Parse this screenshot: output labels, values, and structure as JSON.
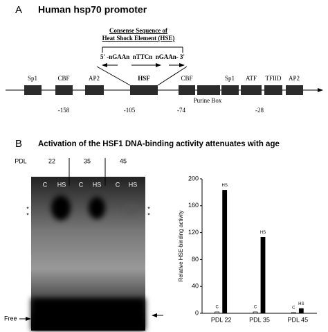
{
  "panel_a": {
    "letter": "A",
    "title": "Human hsp70 promoter",
    "consensus_title": [
      "Consense Sequence of",
      "Heat Shock Element (HSE)"
    ],
    "sequence": "5' -nGAAn  nTTCn  nGAAn- 3'",
    "elements": [
      "Sp1",
      "CBF",
      "AP2",
      "HSF",
      "CBF",
      "Sp1",
      "ATF",
      "TFIID",
      "AP2"
    ],
    "purine_box": "Purine Box",
    "positions": [
      "-158",
      "-105",
      "-74",
      "-28"
    ]
  },
  "panel_b": {
    "letter": "B",
    "title": "Activation of the HSF1 DNA-binding activity attenuates with age"
  },
  "gel": {
    "pdl_label": "PDL",
    "pdl": [
      "22",
      "35",
      "45"
    ],
    "lanes": [
      "C",
      "HS",
      "C",
      "HS",
      "C",
      "HS"
    ],
    "stars": [
      "*",
      "*",
      "*",
      "*"
    ],
    "free": "Free"
  },
  "chart_data": {
    "type": "bar",
    "y_label": "Relative HSE-binding activity",
    "categories": [
      "PDL 22",
      "PDL 35",
      "PDL 45"
    ],
    "series": [
      {
        "name": "C",
        "color": "#ffffff",
        "values": [
          2,
          2,
          1
        ]
      },
      {
        "name": "HS",
        "color": "#000000",
        "values": [
          183,
          113,
          7
        ]
      }
    ],
    "ylim": [
      0,
      200
    ],
    "yticks": [
      0,
      40,
      80,
      120,
      160,
      200
    ],
    "grid": false
  }
}
